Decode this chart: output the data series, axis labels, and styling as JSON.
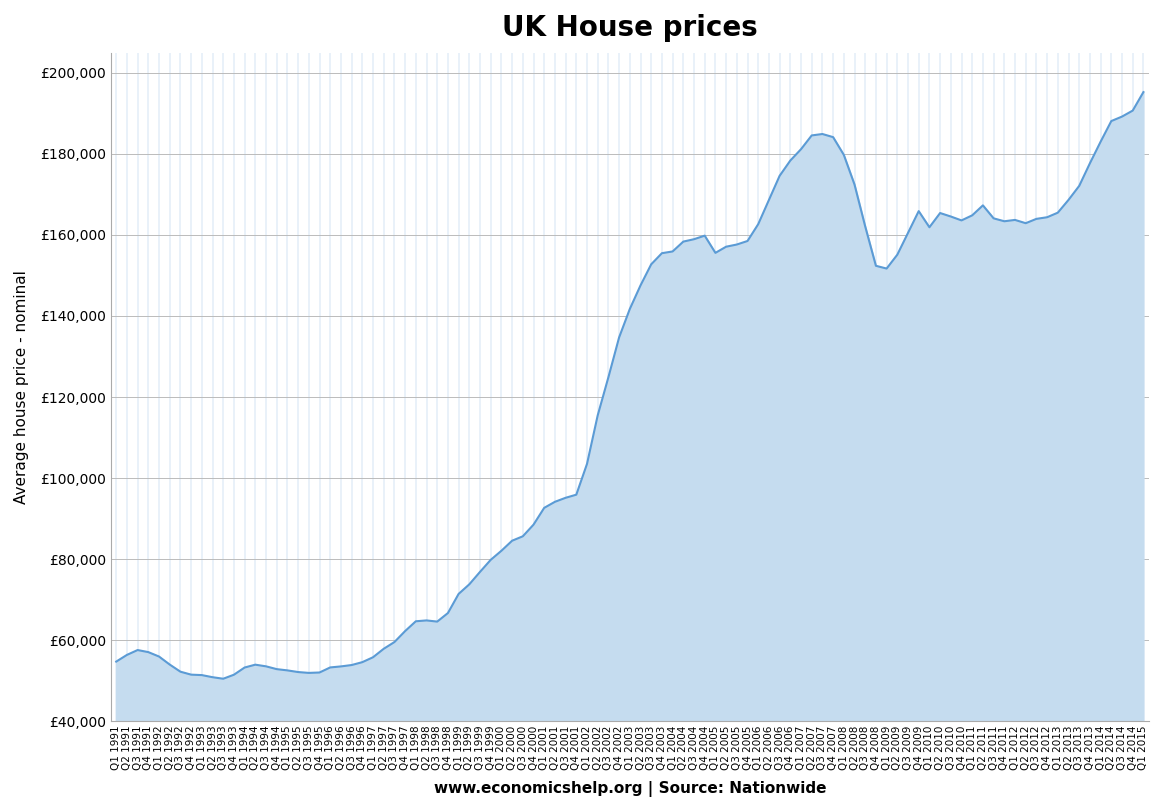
{
  "title": "UK House prices",
  "ylabel": "Average house price - nominal",
  "xlabel": "www.economicshelp.org | Source: Nationwide",
  "title_fontsize": 20,
  "ylabel_fontsize": 11,
  "xlabel_fontsize": 11,
  "line_color": "#5B9BD5",
  "fill_color": "#C5DCEF",
  "background_color": "#FFFFFF",
  "ylim": [
    40000,
    205000
  ],
  "ytick_step": 20000,
  "quarters": [
    "Q1\n1991",
    "Q4\n1991",
    "Q3\n1992",
    "Q2\n1993",
    "Q1\n1994",
    "Q4\n1994",
    "Q3\n1995",
    "Q2\n1996",
    "Q1\n1997",
    "Q4\n1997",
    "Q3\n1998",
    "Q2\n1999",
    "Q1\n2000",
    "Q4\n2000",
    "Q3\n2001",
    "Q2\n2002",
    "Q1\n2003",
    "Q4\n2003",
    "Q3\n2004",
    "Q2\n2005",
    "Q1\n2006",
    "Q4\n2006",
    "Q3\n2007",
    "Q2\n2008",
    "Q1\n2009",
    "Q4\n2009",
    "Q3\n2010",
    "Q2\n2011",
    "Q1\n2012",
    "Q4\n2012",
    "Q3\n2013",
    "Q2\n2014",
    "Q1\n2015"
  ],
  "tick_indices": [
    0,
    3,
    6,
    9,
    12,
    15,
    18,
    21,
    24,
    27,
    30,
    33,
    36,
    39,
    42,
    45,
    48,
    51,
    54,
    57,
    60,
    63,
    66,
    69,
    72,
    75,
    78,
    81,
    84,
    87,
    90,
    93,
    96
  ],
  "all_quarters": [
    "Q1 1991",
    "Q2 1991",
    "Q3 1991",
    "Q4 1991",
    "Q1 1992",
    "Q2 1992",
    "Q3 1992",
    "Q4 1992",
    "Q1 1993",
    "Q2 1993",
    "Q3 1993",
    "Q4 1993",
    "Q1 1994",
    "Q2 1994",
    "Q3 1994",
    "Q4 1994",
    "Q1 1995",
    "Q2 1995",
    "Q3 1995",
    "Q4 1995",
    "Q1 1996",
    "Q2 1996",
    "Q3 1996",
    "Q4 1996",
    "Q1 1997",
    "Q2 1997",
    "Q3 1997",
    "Q4 1997",
    "Q1 1998",
    "Q2 1998",
    "Q3 1998",
    "Q4 1998",
    "Q1 1999",
    "Q2 1999",
    "Q3 1999",
    "Q4 1999",
    "Q1 2000",
    "Q2 2000",
    "Q3 2000",
    "Q4 2000",
    "Q1 2001",
    "Q2 2001",
    "Q3 2001",
    "Q4 2001",
    "Q1 2002",
    "Q2 2002",
    "Q3 2002",
    "Q4 2002",
    "Q1 2003",
    "Q2 2003",
    "Q3 2003",
    "Q4 2003",
    "Q1 2004",
    "Q2 2004",
    "Q3 2004",
    "Q4 2004",
    "Q1 2005",
    "Q2 2005",
    "Q3 2005",
    "Q4 2005",
    "Q1 2006",
    "Q2 2006",
    "Q3 2006",
    "Q4 2006",
    "Q1 2007",
    "Q2 2007",
    "Q3 2007",
    "Q4 2007",
    "Q1 2008",
    "Q2 2008",
    "Q3 2008",
    "Q4 2008",
    "Q1 2009",
    "Q2 2009",
    "Q3 2009",
    "Q4 2009",
    "Q1 2010",
    "Q2 2010",
    "Q3 2010",
    "Q4 2010",
    "Q1 2011",
    "Q2 2011",
    "Q3 2011",
    "Q4 2011",
    "Q1 2012",
    "Q2 2012",
    "Q3 2012",
    "Q4 2012",
    "Q1 2013",
    "Q2 2013",
    "Q3 2013",
    "Q4 2013",
    "Q1 2014",
    "Q2 2014",
    "Q3 2014",
    "Q4 2014",
    "Q1 2015"
  ],
  "values": [
    54710,
    56360,
    57560,
    57050,
    55960,
    53980,
    52220,
    51490,
    51380,
    50860,
    50480,
    51470,
    53250,
    53950,
    53540,
    52850,
    52540,
    52130,
    51920,
    52020,
    53270,
    53520,
    53860,
    54570,
    55780,
    57870,
    59530,
    62240,
    64660,
    64870,
    64580,
    66690,
    71410,
    73780,
    76850,
    79820,
    82060,
    84540,
    85630,
    88500,
    92650,
    94140,
    95130,
    95900,
    103500,
    115480,
    124890,
    134710,
    141730,
    147540,
    152750,
    155490,
    155920,
    158350,
    158940,
    159820,
    155570,
    157090,
    157630,
    158500,
    162650,
    168620,
    174580,
    178350,
    181150,
    184550,
    184900,
    184130,
    179760,
    172440,
    162100,
    152380,
    151700,
    155120,
    160500,
    165870,
    161890,
    165400,
    164540,
    163580,
    164830,
    167290,
    164090,
    163370,
    163700,
    162890,
    163960,
    164360,
    165490,
    168640,
    172100,
    177680,
    183000,
    188100,
    189200,
    190680,
    195240
  ]
}
